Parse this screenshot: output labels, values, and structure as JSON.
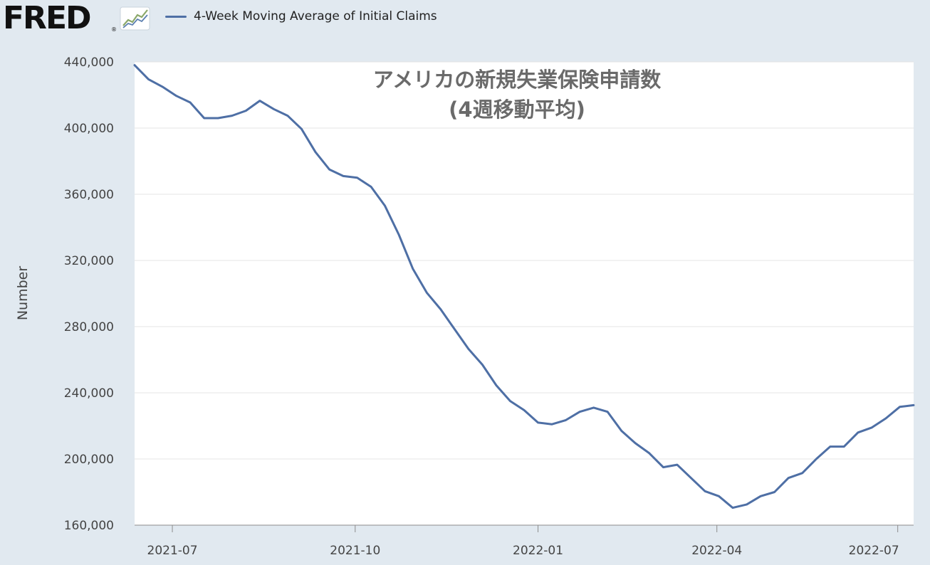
{
  "header": {
    "logo_text": "FRED",
    "logo_mark": "®",
    "logo_icon": "line-chart-icon",
    "legend_label": "4-Week Moving Average of Initial Claims"
  },
  "colors": {
    "background": "#e1e9f0",
    "plot_background": "#ffffff",
    "series": "#4e6fa5",
    "grid": "#e4e4e4"
  },
  "chart_data": {
    "type": "line",
    "title": "アメリカの新規失業保険申請数",
    "subtitle": "(4週移動平均)",
    "xlabel": "",
    "ylabel": "Number",
    "ylim": [
      160000,
      440000
    ],
    "yticks": [
      160000,
      200000,
      240000,
      280000,
      320000,
      360000,
      400000,
      440000
    ],
    "ytick_labels": [
      "160,000",
      "200,000",
      "240,000",
      "280,000",
      "320,000",
      "360,000",
      "400,000",
      "440,000"
    ],
    "xlim": [
      "2021-06-12",
      "2022-07-09"
    ],
    "xticks": [
      "2021-07-01",
      "2021-10-01",
      "2022-01-01",
      "2022-04-01",
      "2022-07-01"
    ],
    "xtick_labels": [
      "2021-07",
      "2021-10",
      "2022-01",
      "2022-04",
      "2022-07"
    ],
    "grid": true,
    "legend": "top-left",
    "series": [
      {
        "name": "4-Week Moving Average of Initial Claims",
        "x": [
          "2021-06-12",
          "2021-06-19",
          "2021-06-26",
          "2021-07-03",
          "2021-07-10",
          "2021-07-17",
          "2021-07-24",
          "2021-07-31",
          "2021-08-07",
          "2021-08-14",
          "2021-08-21",
          "2021-08-28",
          "2021-09-04",
          "2021-09-11",
          "2021-09-18",
          "2021-09-25",
          "2021-10-02",
          "2021-10-09",
          "2021-10-16",
          "2021-10-23",
          "2021-10-30",
          "2021-11-06",
          "2021-11-13",
          "2021-11-20",
          "2021-11-27",
          "2021-12-04",
          "2021-12-11",
          "2021-12-18",
          "2021-12-25",
          "2022-01-01",
          "2022-01-08",
          "2022-01-15",
          "2022-01-22",
          "2022-01-29",
          "2022-02-05",
          "2022-02-12",
          "2022-02-19",
          "2022-02-26",
          "2022-03-05",
          "2022-03-12",
          "2022-03-19",
          "2022-03-26",
          "2022-04-02",
          "2022-04-09",
          "2022-04-16",
          "2022-04-23",
          "2022-04-30",
          "2022-05-07",
          "2022-05-14",
          "2022-05-21",
          "2022-05-28",
          "2022-06-04",
          "2022-06-11",
          "2022-06-18",
          "2022-06-25",
          "2022-07-02",
          "2022-07-09"
        ],
        "values": [
          438000,
          429500,
          425000,
          419500,
          415500,
          406000,
          406000,
          407500,
          410500,
          416500,
          411500,
          407500,
          399500,
          385500,
          375000,
          371000,
          370000,
          364500,
          353000,
          335500,
          315000,
          300500,
          290500,
          278500,
          266500,
          257000,
          244500,
          235000,
          229500,
          222000,
          221000,
          223500,
          228500,
          231000,
          228500,
          217000,
          209500,
          203500,
          195000,
          196500,
          188500,
          180500,
          177500,
          170500,
          172500,
          177500,
          180000,
          188500,
          191500,
          200000,
          207500,
          207500,
          216000,
          219000,
          224500,
          231500,
          232500
        ]
      }
    ]
  }
}
